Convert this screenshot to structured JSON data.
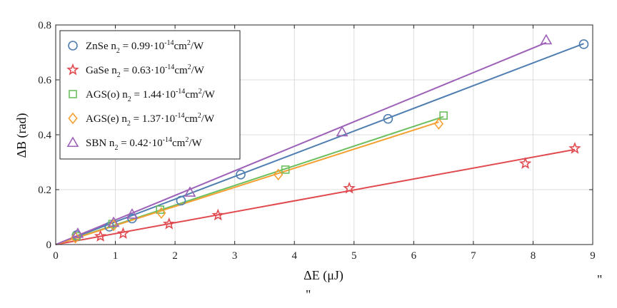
{
  "chart_data": {
    "type": "scatter",
    "xlabel": "ΔE (μJ)",
    "ylabel": "ΔB (rad)",
    "xlim": [
      0,
      9
    ],
    "ylim": [
      0,
      0.8
    ],
    "xticks": [
      "0",
      "1",
      "2",
      "3",
      "4",
      "5",
      "6",
      "7",
      "8",
      "9"
    ],
    "yticks": [
      "0",
      "0.2",
      "0.4",
      "0.6",
      "0.8"
    ],
    "grid": true,
    "legend_position": "top-left",
    "stray_marks": [
      "\"",
      "\""
    ],
    "series": [
      {
        "label_main": "ZnSe n",
        "label_sub": "2",
        "label_mid": " = 0.99·10",
        "label_sup": "-14",
        "label_unit": "cm",
        "label_unit_sup": "2",
        "label_end": "/W",
        "marker": "circle",
        "color": "#4f7eb0",
        "x": [
          0.35,
          0.9,
          1.28,
          2.1,
          3.1,
          5.57,
          8.85
        ],
        "y": [
          0.034,
          0.065,
          0.095,
          0.16,
          0.255,
          0.458,
          0.73
        ],
        "fit_slope": 0.0827,
        "fit_xmax": 8.85
      },
      {
        "label_main": "GaSe n",
        "label_sub": "2",
        "label_mid": " = 0.63·10",
        "label_sup": "-14",
        "label_unit": "cm",
        "label_unit_sup": "2",
        "label_end": "/W",
        "marker": "star",
        "color": "#e04a4f",
        "x": [
          0.75,
          1.13,
          1.9,
          2.72,
          4.92,
          7.87,
          8.7
        ],
        "y": [
          0.03,
          0.04,
          0.075,
          0.107,
          0.205,
          0.295,
          0.35
        ],
        "fit_slope": 0.0398,
        "fit_xmax": 8.7
      },
      {
        "label_main": "AGS(o) n",
        "label_sub": "2",
        "label_mid": " = 1.44·10",
        "label_sup": "-14",
        "label_unit": "cm",
        "label_unit_sup": "2",
        "label_end": "/W",
        "marker": "square",
        "color": "#6cbf5f",
        "x": [
          0.35,
          0.95,
          1.75,
          3.85,
          6.5
        ],
        "y": [
          0.03,
          0.075,
          0.127,
          0.273,
          0.47
        ],
        "fit_slope": 0.0717,
        "fit_xmax": 6.5
      },
      {
        "label_main": "AGS(e) n",
        "label_sub": "2",
        "label_mid": " = 1.37·10",
        "label_sup": "-14",
        "label_unit": "cm",
        "label_unit_sup": "2",
        "label_end": "/W",
        "marker": "diamond",
        "color": "#f5a033",
        "x": [
          0.33,
          0.97,
          1.77,
          3.73,
          6.42
        ],
        "y": [
          0.025,
          0.07,
          0.115,
          0.255,
          0.44
        ],
        "fit_slope": 0.0695,
        "fit_xmax": 6.42
      },
      {
        "label_main": "SBN n",
        "label_sub": "2",
        "label_mid": " = 0.42·10",
        "label_sup": "-14",
        "label_unit": "cm",
        "label_unit_sup": "2",
        "label_end": "/W",
        "marker": "triangle",
        "color": "#9d62b8",
        "x": [
          0.37,
          0.97,
          1.28,
          2.25,
          4.8,
          8.22
        ],
        "y": [
          0.04,
          0.08,
          0.11,
          0.19,
          0.41,
          0.745
        ],
        "fit_slope": 0.0895,
        "fit_xmax": 8.22
      }
    ]
  }
}
